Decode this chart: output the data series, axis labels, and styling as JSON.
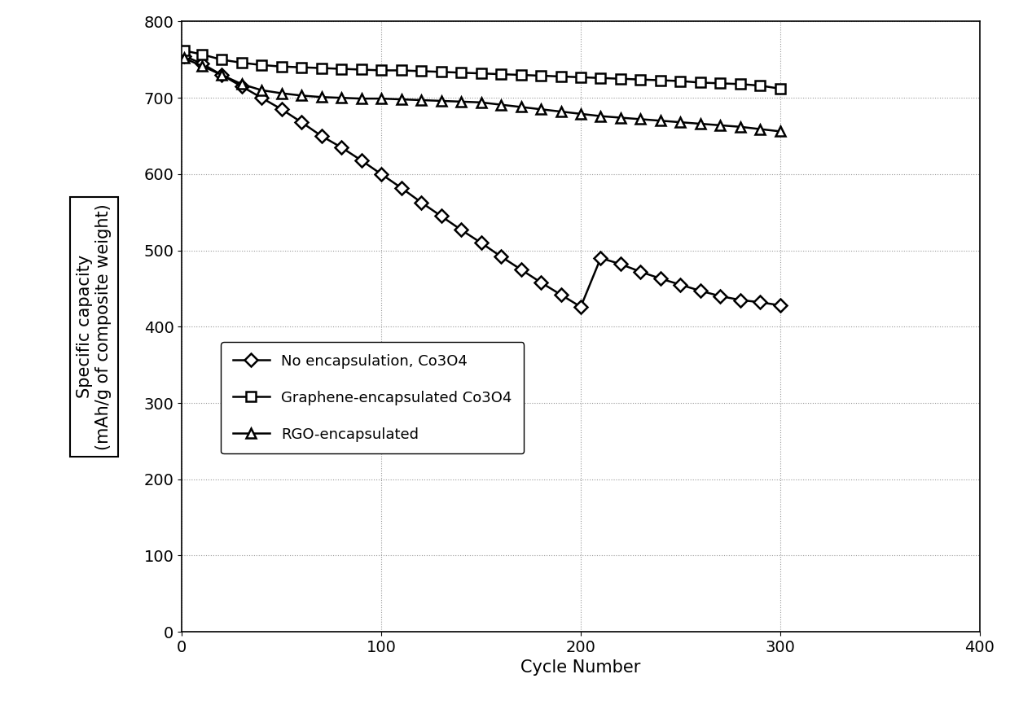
{
  "title": "",
  "xlabel": "Cycle Number",
  "ylabel_line1": "Specific capacity",
  "ylabel_line2": "(mAh/g of composite weight)",
  "xlim": [
    0,
    400
  ],
  "ylim": [
    0,
    800
  ],
  "xticks": [
    0,
    100,
    200,
    300,
    400
  ],
  "yticks": [
    0,
    100,
    200,
    300,
    400,
    500,
    600,
    700,
    800
  ],
  "background_color": "#ffffff",
  "grid_color": "#999999",
  "series": [
    {
      "label": "No encapsulation, Co3O4",
      "marker": "D",
      "color": "#000000",
      "x": [
        1,
        10,
        20,
        30,
        40,
        50,
        60,
        70,
        80,
        90,
        100,
        110,
        120,
        130,
        140,
        150,
        160,
        170,
        180,
        190,
        200,
        210,
        220,
        230,
        240,
        250,
        260,
        270,
        280,
        290,
        300
      ],
      "y": [
        755,
        745,
        730,
        715,
        700,
        685,
        668,
        650,
        635,
        618,
        600,
        582,
        563,
        545,
        527,
        510,
        492,
        475,
        458,
        442,
        426,
        490,
        482,
        472,
        463,
        455,
        447,
        440,
        435,
        432,
        428
      ]
    },
    {
      "label": "Graphene-encapsulated Co3O4",
      "marker": "s",
      "color": "#000000",
      "x": [
        1,
        10,
        20,
        30,
        40,
        50,
        60,
        70,
        80,
        90,
        100,
        110,
        120,
        130,
        140,
        150,
        160,
        170,
        180,
        190,
        200,
        210,
        220,
        230,
        240,
        250,
        260,
        270,
        280,
        290,
        300
      ],
      "y": [
        762,
        757,
        750,
        746,
        743,
        741,
        740,
        739,
        738,
        737,
        736,
        736,
        735,
        734,
        733,
        732,
        731,
        730,
        729,
        728,
        727,
        726,
        725,
        724,
        723,
        722,
        720,
        719,
        718,
        716,
        712
      ]
    },
    {
      "label": "RGO-encapsulated",
      "marker": "^",
      "color": "#000000",
      "x": [
        1,
        10,
        20,
        30,
        40,
        50,
        60,
        70,
        80,
        90,
        100,
        110,
        120,
        130,
        140,
        150,
        160,
        170,
        180,
        190,
        200,
        210,
        220,
        230,
        240,
        250,
        260,
        270,
        280,
        290,
        300
      ],
      "y": [
        752,
        742,
        730,
        718,
        710,
        706,
        703,
        701,
        700,
        699,
        699,
        698,
        697,
        696,
        695,
        694,
        691,
        688,
        685,
        682,
        679,
        676,
        674,
        672,
        670,
        668,
        666,
        664,
        662,
        659,
        656
      ]
    }
  ],
  "marker_size": 8,
  "line_width": 1.8,
  "font_size": 15,
  "tick_font_size": 14,
  "legend_entries": [
    "No encapsulation, Co3O4",
    "Graphene-encapsulated Co3O4",
    "RGO-encapsulated"
  ]
}
